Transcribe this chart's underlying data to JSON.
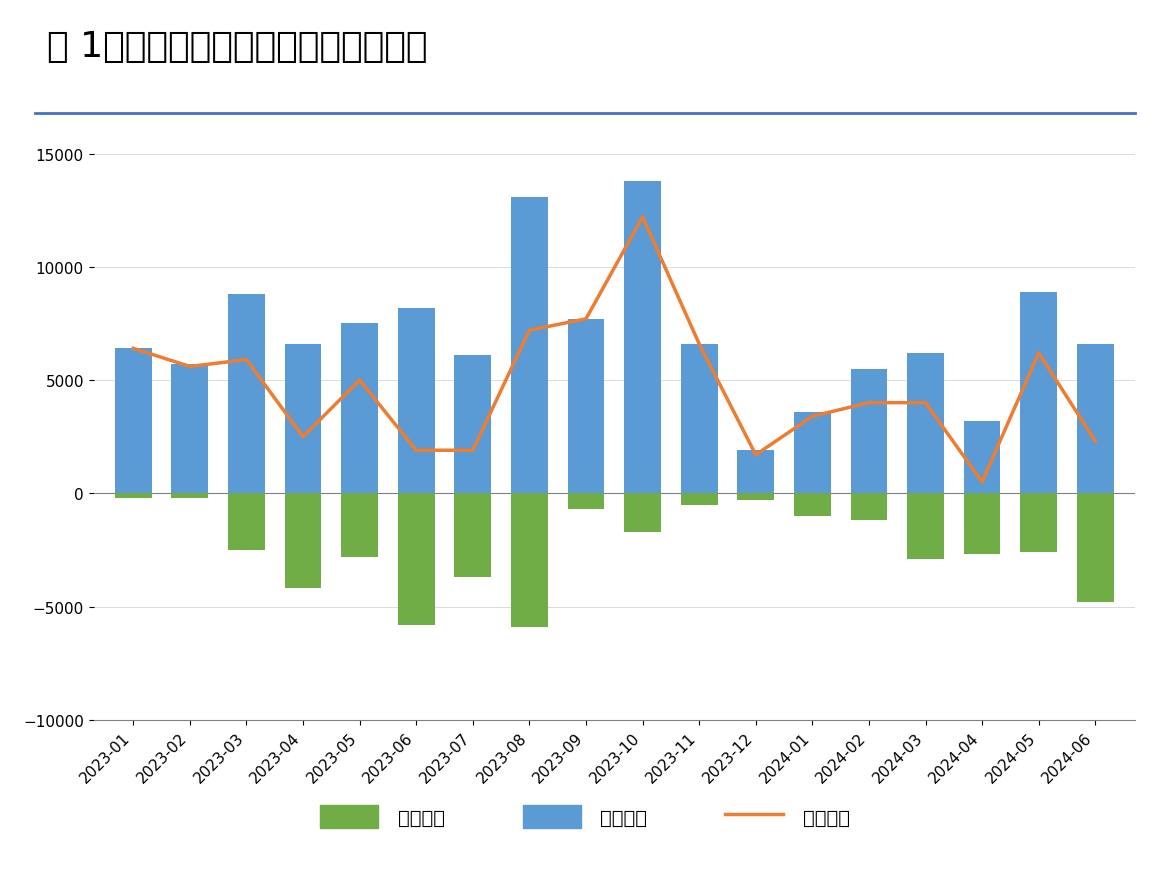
{
  "title": "图 1：地方债发行与偿还情况（亿元）",
  "categories": [
    "2023-01",
    "2023-02",
    "2023-03",
    "2023-04",
    "2023-05",
    "2023-06",
    "2023-07",
    "2023-08",
    "2023-09",
    "2023-10",
    "2023-11",
    "2023-12",
    "2024-01",
    "2024-02",
    "2024-03",
    "2024-04",
    "2024-05",
    "2024-06"
  ],
  "issuance": [
    6400,
    5700,
    8800,
    6600,
    7500,
    8200,
    6100,
    13100,
    7700,
    13800,
    6600,
    1900,
    3600,
    5500,
    6200,
    3200,
    8900,
    6600
  ],
  "repayment": [
    -200,
    -200,
    -2500,
    -4200,
    -2800,
    -5800,
    -3700,
    -5900,
    -700,
    -1700,
    -500,
    -300,
    -1000,
    -1200,
    -2900,
    -2700,
    -2600,
    -4800
  ],
  "net_financing": [
    6400,
    5600,
    5900,
    2500,
    5000,
    1900,
    1900,
    7200,
    7700,
    12200,
    6600,
    1700,
    3400,
    4000,
    4000,
    500,
    6200,
    2300
  ],
  "issuance_color": "#5B9BD5",
  "repayment_color": "#70AD47",
  "net_color": "#ED7D31",
  "background_color": "#FFFFFF",
  "ylim": [
    -10000,
    16000
  ],
  "yticks": [
    -10000,
    -5000,
    0,
    5000,
    10000,
    15000
  ],
  "legend_labels": [
    "总偿还量",
    "总发行量",
    "净融资额"
  ],
  "title_fontsize": 26,
  "tick_fontsize": 11,
  "legend_fontsize": 14,
  "grid_color": "#CCCCCC",
  "border_color": "#4472C4"
}
